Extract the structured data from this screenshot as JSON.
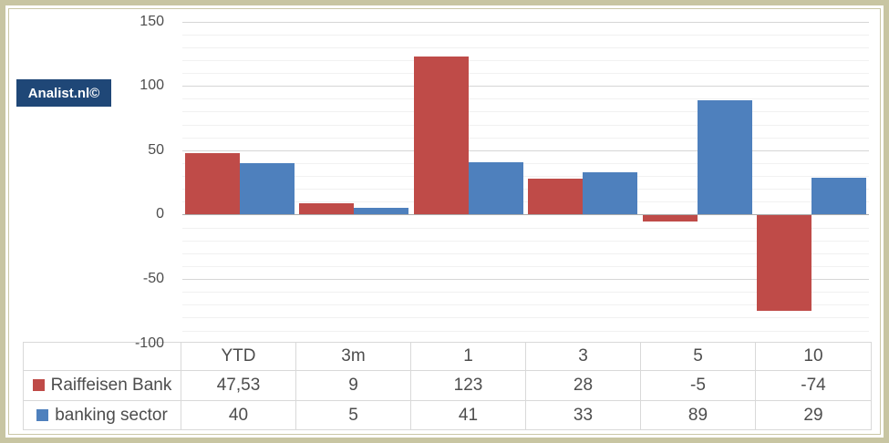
{
  "branding": {
    "label": "Analist.nl©"
  },
  "chart_data": {
    "type": "bar",
    "categories": [
      "YTD",
      "3m",
      "1",
      "3",
      "5",
      "10"
    ],
    "series": [
      {
        "name": "Raiffeisen Bank",
        "color": "#bf4b48",
        "values": [
          47.53,
          9,
          123,
          28,
          -5,
          -74
        ]
      },
      {
        "name": "banking sector",
        "color": "#4e80bd",
        "values": [
          40,
          5,
          41,
          33,
          89,
          29
        ]
      }
    ],
    "title": "",
    "xlabel": "",
    "ylabel": "",
    "ylim": [
      -100,
      150
    ],
    "y_major_ticks": [
      150,
      100,
      50,
      0,
      -50,
      -100
    ],
    "y_minor_step": 10,
    "grid": true,
    "legend_position": "table-left"
  },
  "table": {
    "headers": [
      "YTD",
      "3m",
      "1",
      "3",
      "5",
      "10"
    ],
    "rows": [
      {
        "label": "Raiffeisen Bank",
        "marker_color": "#bf4b48",
        "values": [
          "47,53",
          "9",
          "123",
          "28",
          "-5",
          "-74"
        ]
      },
      {
        "label": "banking sector",
        "marker_color": "#4e80bd",
        "values": [
          "40",
          "5",
          "41",
          "33",
          "89",
          "29"
        ]
      }
    ]
  },
  "colors": {
    "bar_red": "#bf4b48",
    "bar_blue": "#4e80bd",
    "frame": "#c8c5a2",
    "badge_bg": "#1f4777",
    "gridline_major": "#d6d6d6",
    "gridline_minor": "#f1f1f1",
    "axis_line": "#ababab",
    "text": "#4d4d4d"
  }
}
